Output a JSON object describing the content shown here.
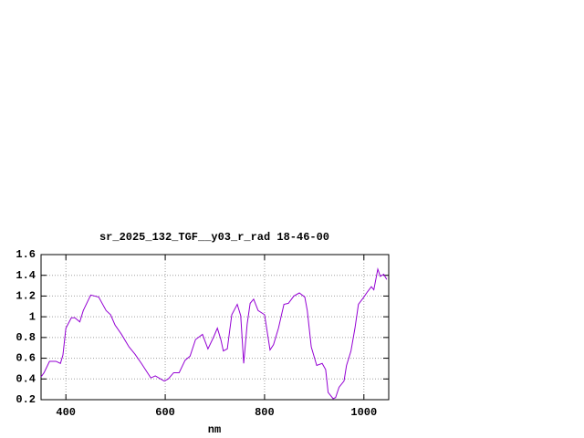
{
  "chart_data": {
    "type": "line",
    "title": "sr_2025_132_TGF__y03_r_rad 18-46-00",
    "x_label": "nm",
    "x": [
      350,
      356,
      367,
      380,
      389,
      394,
      400,
      411,
      418,
      428,
      435,
      450,
      466,
      481,
      490,
      499,
      512,
      527,
      539,
      552,
      571,
      580,
      598,
      606,
      617,
      628,
      640,
      650,
      661,
      675,
      686,
      697,
      705,
      712,
      717,
      725,
      734,
      745,
      752,
      758,
      765,
      771,
      778,
      787,
      800,
      811,
      818,
      828,
      839,
      848,
      859,
      870,
      881,
      886,
      894,
      905,
      916,
      923,
      928,
      938,
      943,
      950,
      960,
      965,
      974,
      982,
      989,
      1000,
      1007,
      1015,
      1020,
      1028,
      1033,
      1040,
      1046
    ],
    "series": [
      {
        "color": "#9400d3",
        "values": [
          0.42,
          0.46,
          0.57,
          0.57,
          0.55,
          0.63,
          0.89,
          0.99,
          0.99,
          0.95,
          1.06,
          1.21,
          1.19,
          1.06,
          1.02,
          0.92,
          0.83,
          0.71,
          0.64,
          0.55,
          0.41,
          0.43,
          0.38,
          0.4,
          0.46,
          0.46,
          0.58,
          0.62,
          0.78,
          0.83,
          0.69,
          0.8,
          0.89,
          0.78,
          0.67,
          0.69,
          1.02,
          1.12,
          1.01,
          0.55,
          0.93,
          1.13,
          1.17,
          1.06,
          1.02,
          0.68,
          0.73,
          0.89,
          1.12,
          1.13,
          1.2,
          1.23,
          1.19,
          1.06,
          0.71,
          0.53,
          0.55,
          0.49,
          0.27,
          0.21,
          0.22,
          0.32,
          0.38,
          0.53,
          0.67,
          0.89,
          1.12,
          1.19,
          1.24,
          1.29,
          1.26,
          1.46,
          1.39,
          1.41,
          1.36
        ]
      }
    ],
    "xlim": [
      350,
      1050
    ],
    "xticks": [
      400,
      600,
      800,
      1000
    ],
    "ylim": [
      0.2,
      1.6
    ],
    "yticks": [
      0.2,
      0.4,
      0.6,
      0.8,
      1,
      1.2,
      1.4,
      1.6
    ],
    "grid": true
  }
}
